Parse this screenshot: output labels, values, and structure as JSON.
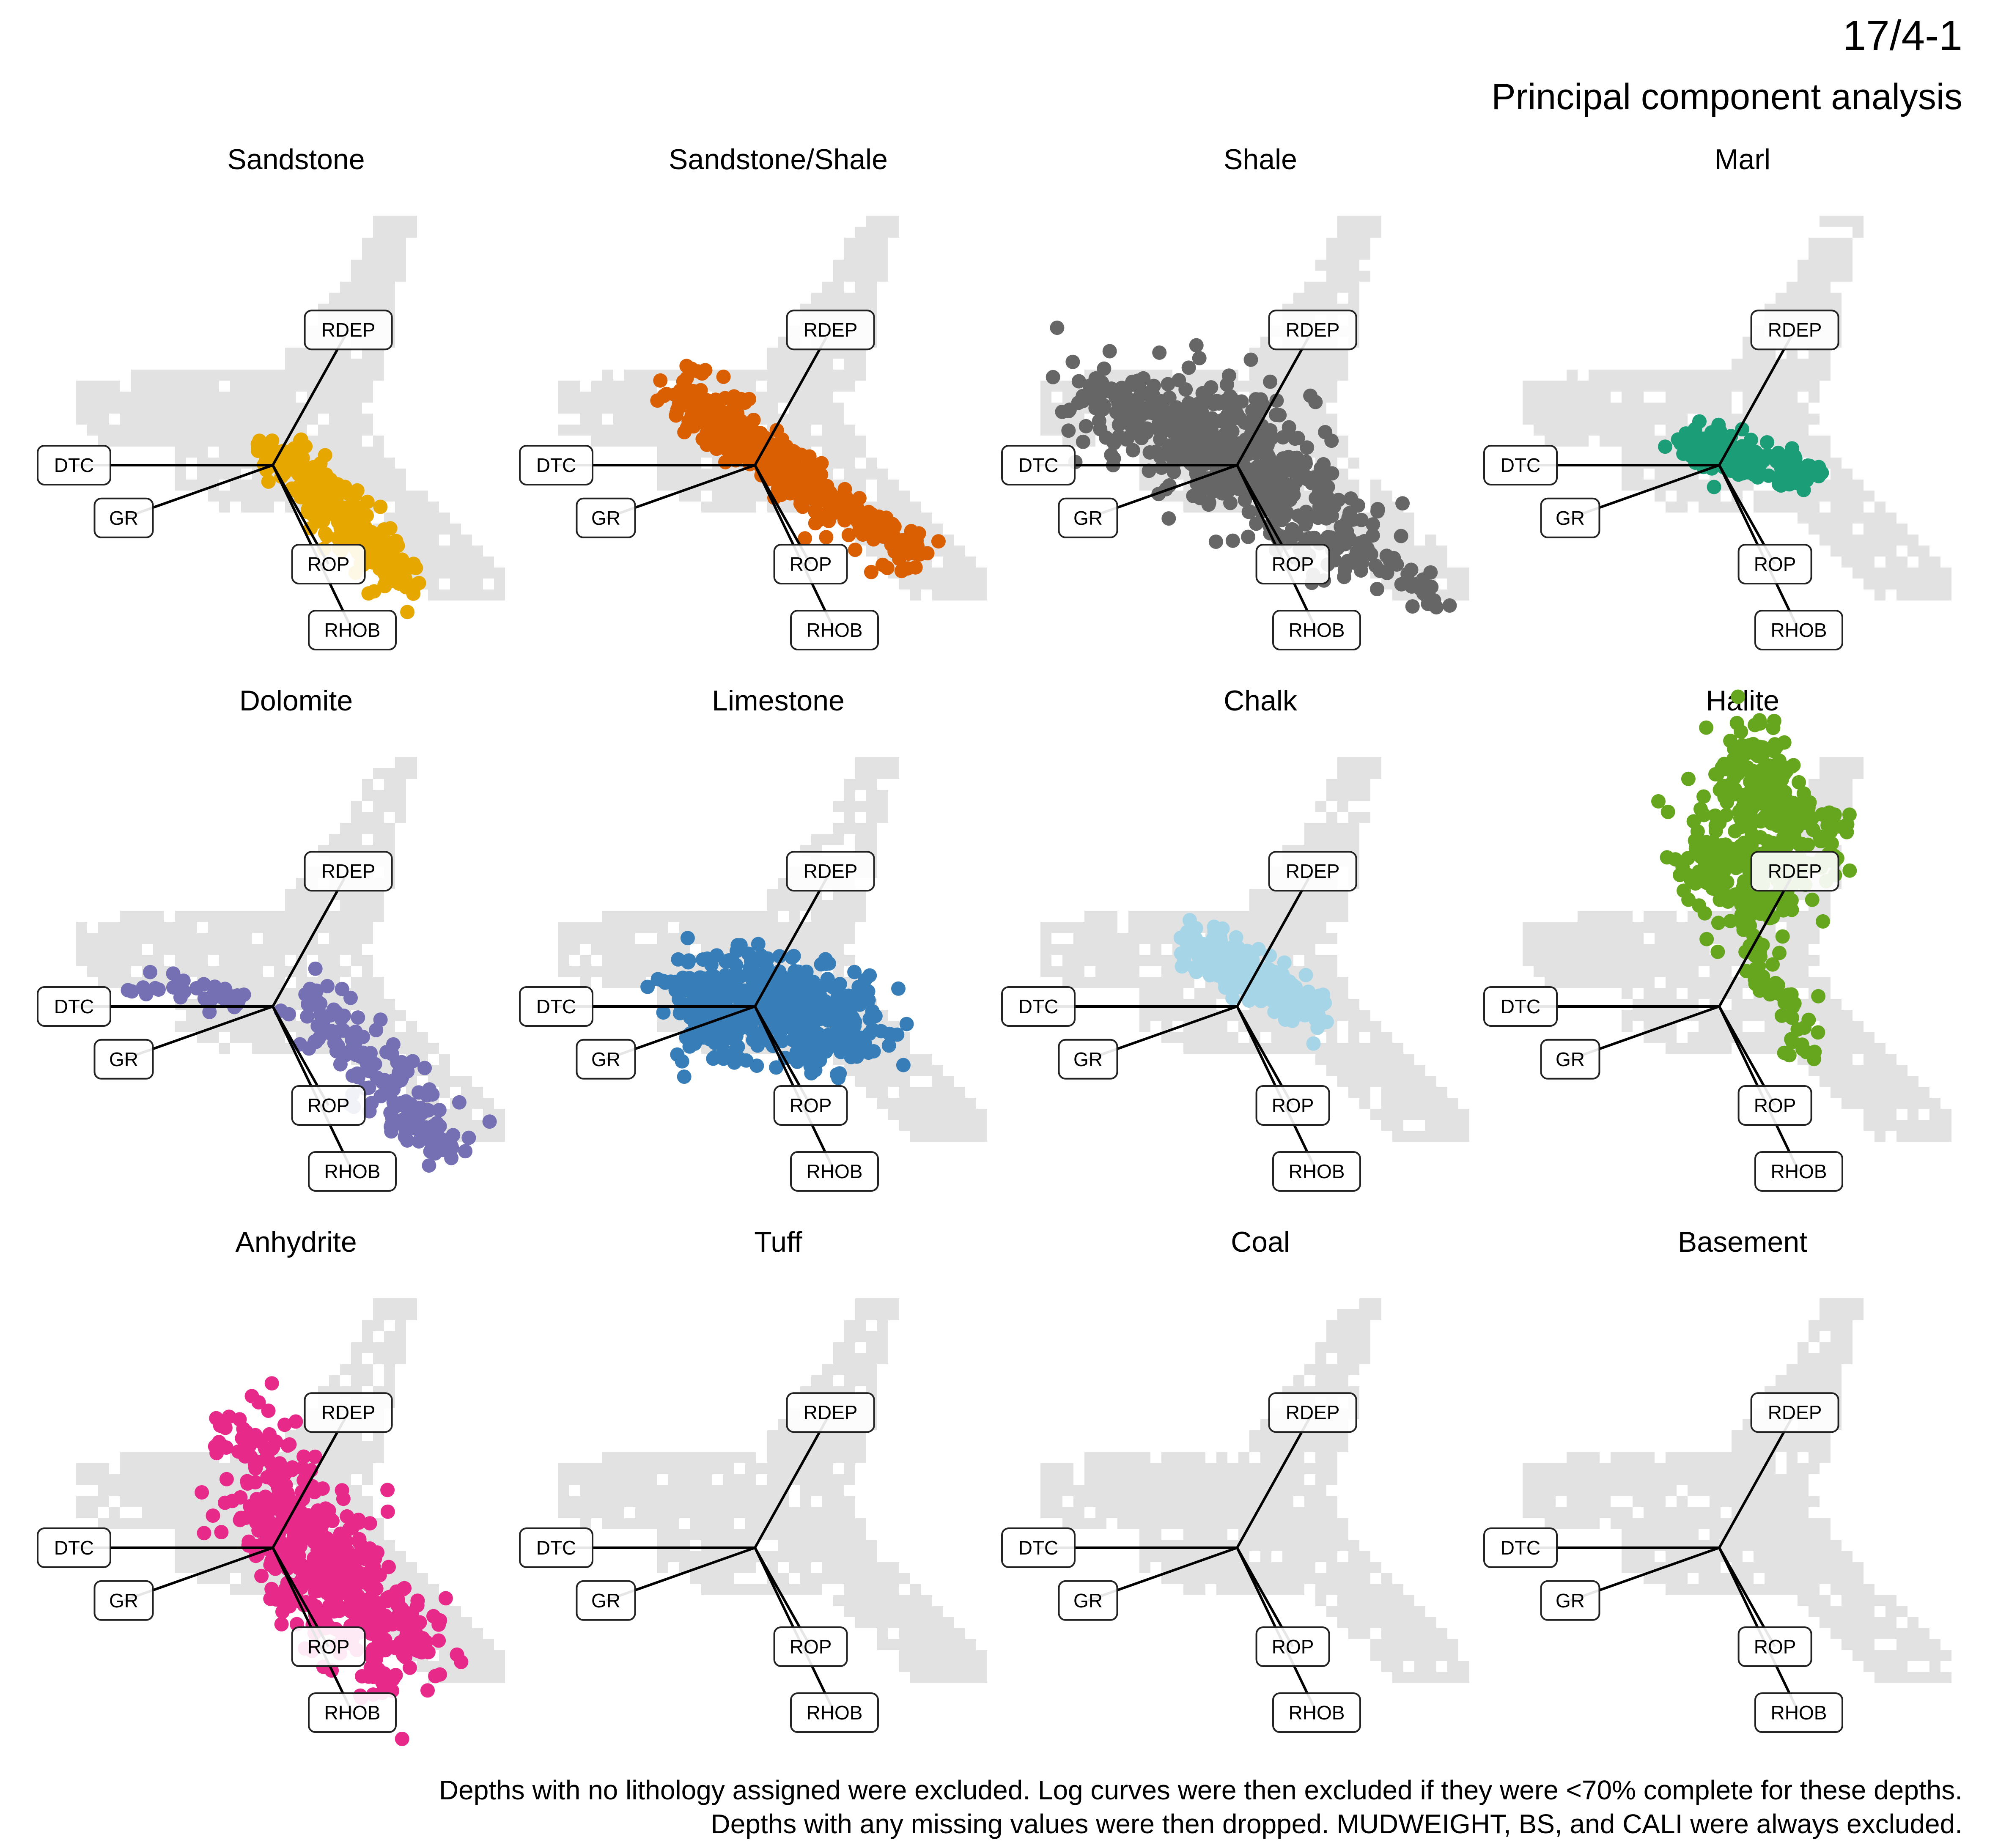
{
  "header": {
    "well": "17/4-1",
    "title": "Principal component analysis"
  },
  "footer": {
    "line1": "Depths with no lithology assigned were excluded. Log curves were then excluded if they were <70% complete for these depths.",
    "line2": "Depths with any missing values were then dropped. MUDWEIGHT, BS, and CALI were always excluded."
  },
  "chart_data": {
    "type": "scatter",
    "description_of_axes": "PCA biplot, no axis ticks or labels shown",
    "loadings": [
      {
        "name": "DTC",
        "x": -1.0,
        "y": 0.0
      },
      {
        "name": "GR",
        "x": -0.75,
        "y": -0.32
      },
      {
        "name": "RDEP",
        "x": 0.38,
        "y": 0.82
      },
      {
        "name": "ROP",
        "x": 0.28,
        "y": -0.6
      },
      {
        "name": "RHOB",
        "x": 0.4,
        "y": -1.0
      }
    ],
    "background_color": "#e2e2e2",
    "panels": [
      {
        "name": "Sandstone",
        "color": "#E6A800",
        "has_points": true
      },
      {
        "name": "Sandstone/Shale",
        "color": "#D95F02",
        "has_points": true
      },
      {
        "name": "Shale",
        "color": "#666666",
        "has_points": true
      },
      {
        "name": "Marl",
        "color": "#1B9E77",
        "has_points": true
      },
      {
        "name": "Dolomite",
        "color": "#7570B3",
        "has_points": true
      },
      {
        "name": "Limestone",
        "color": "#377EB8",
        "has_points": true
      },
      {
        "name": "Chalk",
        "color": "#A6D5E8",
        "has_points": true
      },
      {
        "name": "Halite",
        "color": "#66A61E",
        "has_points": true
      },
      {
        "name": "Anhydrite",
        "color": "#E7298A",
        "has_points": true
      },
      {
        "name": "Tuff",
        "color": "#999999",
        "has_points": false
      },
      {
        "name": "Coal",
        "color": "#000000",
        "has_points": false
      },
      {
        "name": "Basement",
        "color": "#A65628",
        "has_points": false
      }
    ]
  }
}
